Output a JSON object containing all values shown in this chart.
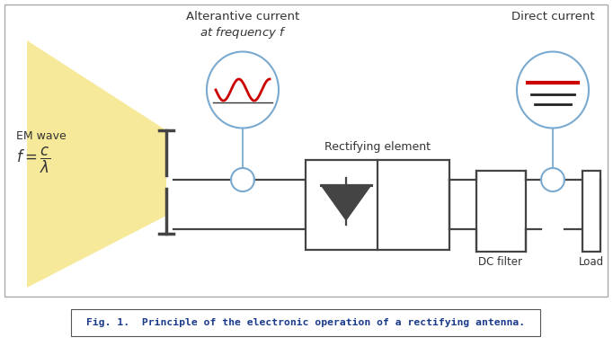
{
  "fig_width": 6.82,
  "fig_height": 3.95,
  "dpi": 100,
  "bg_color": "#ffffff",
  "caption_text": "Fig. 1.  Principle of the electronic operation of a rectifying antenna.",
  "caption_color": "#1a3a8a",
  "caption_fontsize": 8.2,
  "em_wave_label": "EM wave",
  "ac_label_line1": "Alterantive current",
  "ac_label_line2": "at frequency $f$",
  "dc_label": "Direct current",
  "rect_element_label": "Rectifying element",
  "dc_filter_label": "DC filter",
  "load_label": "Load",
  "circuit_color": "#444444",
  "ellipse_color": "#7aaad0",
  "glow_color": "#f5e070",
  "sine_color": "#cc0000",
  "dc_line_red": "#cc0000",
  "dc_line_black": "#222222",
  "text_color": "#333333"
}
